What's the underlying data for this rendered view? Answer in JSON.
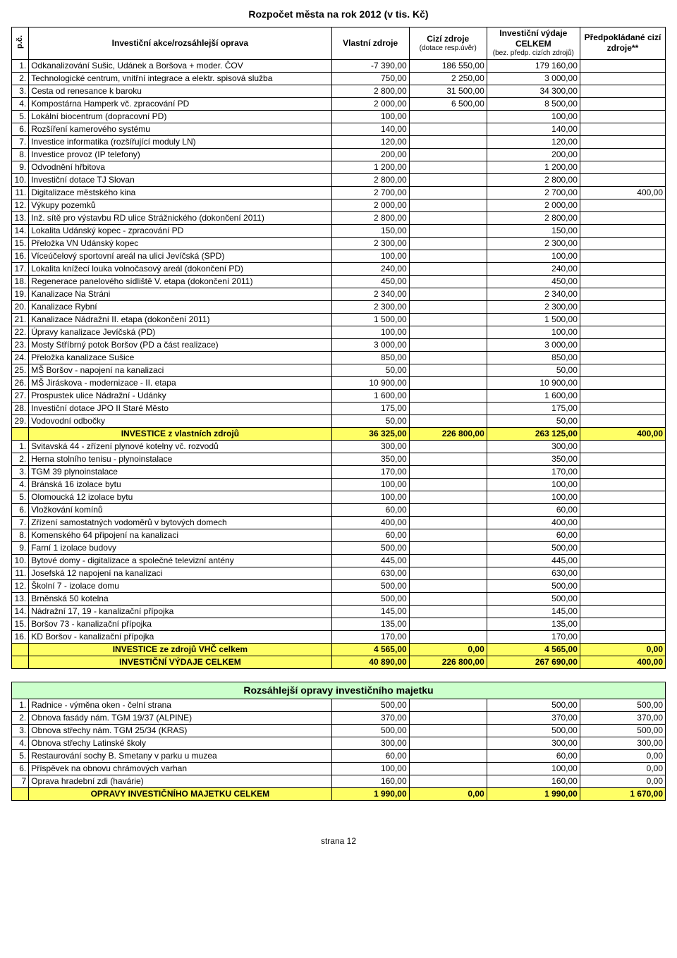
{
  "title": "Rozpočet města na rok 2012 (v tis. Kč)",
  "footer": "strana 12",
  "columns": {
    "pc": "p.č.",
    "name": "Investiční akce/rozsáhlejší oprava",
    "vlastni": "Vlastní zdroje",
    "cizi": "Cizí zdroje",
    "cizi_sub": "(dotace resp.úvěr)",
    "celkem": "Investiční výdaje CELKEM",
    "celkem_sub": "(bez. předp. cizích zdrojů)",
    "predp": "Předpokládané cizí zdroje**"
  },
  "rows1": [
    {
      "pc": "1.",
      "name": "Odkanalizování Sušic, Udánek a Boršova + moder. ČOV",
      "v": "-7 390,00",
      "c": "186 550,00",
      "t": "179 160,00",
      "p": ""
    },
    {
      "pc": "2.",
      "name": "Technologické centrum, vnitřní integrace a elektr. spisová služba",
      "v": "750,00",
      "c": "2 250,00",
      "t": "3 000,00",
      "p": ""
    },
    {
      "pc": "3.",
      "name": "Cesta od renesance k baroku",
      "v": "2 800,00",
      "c": "31 500,00",
      "t": "34 300,00",
      "p": ""
    },
    {
      "pc": "4.",
      "name": "Kompostárna Hamperk vč. zpracování PD",
      "v": "2 000,00",
      "c": "6 500,00",
      "t": "8 500,00",
      "p": ""
    },
    {
      "pc": "5.",
      "name": "Lokální biocentrum (dopracovní PD)",
      "v": "100,00",
      "c": "",
      "t": "100,00",
      "p": ""
    },
    {
      "pc": "6.",
      "name": "Rozšíření kamerového systému",
      "v": "140,00",
      "c": "",
      "t": "140,00",
      "p": ""
    },
    {
      "pc": "7.",
      "name": "Investice informatika (rozšířující moduly LN)",
      "v": "120,00",
      "c": "",
      "t": "120,00",
      "p": ""
    },
    {
      "pc": "8.",
      "name": "Investice provoz (IP telefony)",
      "v": "200,00",
      "c": "",
      "t": "200,00",
      "p": ""
    },
    {
      "pc": "9.",
      "name": "Odvodnění hřbitova",
      "v": "1 200,00",
      "c": "",
      "t": "1 200,00",
      "p": ""
    },
    {
      "pc": "10.",
      "name": "Investiční dotace TJ Slovan",
      "v": "2 800,00",
      "c": "",
      "t": "2 800,00",
      "p": ""
    },
    {
      "pc": "11.",
      "name": "Digitalizace městského kina",
      "v": "2 700,00",
      "c": "",
      "t": "2 700,00",
      "p": "400,00"
    },
    {
      "pc": "12.",
      "name": "Výkupy pozemků",
      "v": "2 000,00",
      "c": "",
      "t": "2 000,00",
      "p": ""
    },
    {
      "pc": "13.",
      "name": "Inž. sítě pro výstavbu RD ulice Strážnického (dokončení 2011)",
      "v": "2 800,00",
      "c": "",
      "t": "2 800,00",
      "p": ""
    },
    {
      "pc": "14.",
      "name": "Lokalita Udánský kopec - zpracování PD",
      "v": "150,00",
      "c": "",
      "t": "150,00",
      "p": ""
    },
    {
      "pc": "15.",
      "name": "Přeložka VN Udánský kopec",
      "v": "2 300,00",
      "c": "",
      "t": "2 300,00",
      "p": ""
    },
    {
      "pc": "16.",
      "name": "Víceúčelový sportovní areál na ulici Jevíčská (SPD)",
      "v": "100,00",
      "c": "",
      "t": "100,00",
      "p": ""
    },
    {
      "pc": "17.",
      "name": "Lokalita knížecí louka volnočasový areál (dokončení PD)",
      "v": "240,00",
      "c": "",
      "t": "240,00",
      "p": ""
    },
    {
      "pc": "18.",
      "name": "Regenerace panelového sídliště V. etapa (dokončení 2011)",
      "v": "450,00",
      "c": "",
      "t": "450,00",
      "p": ""
    },
    {
      "pc": "19.",
      "name": "Kanalizace Na Stráni",
      "v": "2 340,00",
      "c": "",
      "t": "2 340,00",
      "p": ""
    },
    {
      "pc": "20.",
      "name": "Kanalizace Rybní",
      "v": "2 300,00",
      "c": "",
      "t": "2 300,00",
      "p": ""
    },
    {
      "pc": "21.",
      "name": "Kanalizace Nádražní II. etapa (dokončení 2011)",
      "v": "1 500,00",
      "c": "",
      "t": "1 500,00",
      "p": ""
    },
    {
      "pc": "22.",
      "name": "Úpravy kanalizace Jevíčská (PD)",
      "v": "100,00",
      "c": "",
      "t": "100,00",
      "p": ""
    },
    {
      "pc": "23.",
      "name": "Mosty Stříbrný potok Boršov (PD a část realizace)",
      "v": "3 000,00",
      "c": "",
      "t": "3 000,00",
      "p": ""
    },
    {
      "pc": "24.",
      "name": "Přeložka kanalizace Sušice",
      "v": "850,00",
      "c": "",
      "t": "850,00",
      "p": ""
    },
    {
      "pc": "25.",
      "name": "MŠ Boršov - napojení na kanalizaci",
      "v": "50,00",
      "c": "",
      "t": "50,00",
      "p": ""
    },
    {
      "pc": "26.",
      "name": "MŠ Jiráskova - modernizace - II. etapa",
      "v": "10 900,00",
      "c": "",
      "t": "10 900,00",
      "p": ""
    },
    {
      "pc": "27.",
      "name": "Prospustek ulice Nádražní - Udánky",
      "v": "1 600,00",
      "c": "",
      "t": "1 600,00",
      "p": ""
    },
    {
      "pc": "28.",
      "name": "Investiční dotace JPO II Staré Město",
      "v": "175,00",
      "c": "",
      "t": "175,00",
      "p": ""
    },
    {
      "pc": "29.",
      "name": "Vodovodní odbočky",
      "v": "50,00",
      "c": "",
      "t": "50,00",
      "p": ""
    }
  ],
  "sum1": {
    "name": "INVESTICE z vlastních zdrojů",
    "v": "36 325,00",
    "c": "226 800,00",
    "t": "263 125,00",
    "p": "400,00"
  },
  "rows2": [
    {
      "pc": "1.",
      "name": "Svitavská 44 - zřízení plynové kotelny vč. rozvodů",
      "v": "300,00",
      "c": "",
      "t": "300,00",
      "p": ""
    },
    {
      "pc": "2.",
      "name": "Herna stolního tenisu - plynoinstalace",
      "v": "350,00",
      "c": "",
      "t": "350,00",
      "p": ""
    },
    {
      "pc": "3.",
      "name": "TGM 39 plynoinstalace",
      "v": "170,00",
      "c": "",
      "t": "170,00",
      "p": ""
    },
    {
      "pc": "4.",
      "name": "Bránská 16 izolace bytu",
      "v": "100,00",
      "c": "",
      "t": "100,00",
      "p": ""
    },
    {
      "pc": "5.",
      "name": "Olomoucká 12 izolace bytu",
      "v": "100,00",
      "c": "",
      "t": "100,00",
      "p": ""
    },
    {
      "pc": "6.",
      "name": "Vložkování komínů",
      "v": "60,00",
      "c": "",
      "t": "60,00",
      "p": ""
    },
    {
      "pc": "7.",
      "name": "Zřízení samostatných vodoměrů v bytových domech",
      "v": "400,00",
      "c": "",
      "t": "400,00",
      "p": ""
    },
    {
      "pc": "8.",
      "name": "Komenského 64 připojení na kanalizaci",
      "v": "60,00",
      "c": "",
      "t": "60,00",
      "p": ""
    },
    {
      "pc": "9.",
      "name": "Farní 1 izolace budovy",
      "v": "500,00",
      "c": "",
      "t": "500,00",
      "p": ""
    },
    {
      "pc": "10.",
      "name": "Bytové domy - digitalizace a společné televizní antény",
      "v": "445,00",
      "c": "",
      "t": "445,00",
      "p": ""
    },
    {
      "pc": "11.",
      "name": "Josefská 12 napojení na kanalizaci",
      "v": "630,00",
      "c": "",
      "t": "630,00",
      "p": ""
    },
    {
      "pc": "12.",
      "name": "Školní 7 - izolace domu",
      "v": "500,00",
      "c": "",
      "t": "500,00",
      "p": ""
    },
    {
      "pc": "13.",
      "name": "Brněnská 50 kotelna",
      "v": "500,00",
      "c": "",
      "t": "500,00",
      "p": ""
    },
    {
      "pc": "14.",
      "name": "Nádražní 17, 19 - kanalizační přípojka",
      "v": "145,00",
      "c": "",
      "t": "145,00",
      "p": ""
    },
    {
      "pc": "15.",
      "name": "Boršov 73 - kanalizační přípojka",
      "v": "135,00",
      "c": "",
      "t": "135,00",
      "p": ""
    },
    {
      "pc": "16.",
      "name": "KD Boršov - kanalizační přípojka",
      "v": "170,00",
      "c": "",
      "t": "170,00",
      "p": ""
    }
  ],
  "sum2": {
    "name": "INVESTICE ze zdrojů VHČ celkem",
    "v": "4 565,00",
    "c": "0,00",
    "t": "4 565,00",
    "p": "0,00"
  },
  "sum3": {
    "name": "INVESTIČNÍ VÝDAJE CELKEM",
    "v": "40 890,00",
    "c": "226 800,00",
    "t": "267 690,00",
    "p": "400,00"
  },
  "section2_title": "Rozsáhlejší opravy investičního majetku",
  "rows3": [
    {
      "pc": "1.",
      "name": "Radnice - výměna oken - čelní strana",
      "v": "500,00",
      "c": "",
      "t": "500,00",
      "p": "500,00"
    },
    {
      "pc": "2.",
      "name": "Obnova fasády nám. TGM 19/37 (ALPINE)",
      "v": "370,00",
      "c": "",
      "t": "370,00",
      "p": "370,00"
    },
    {
      "pc": "3.",
      "name": "Obnova střechy nám. TGM 25/34 (KRAS)",
      "v": "500,00",
      "c": "",
      "t": "500,00",
      "p": "500,00"
    },
    {
      "pc": "4.",
      "name": "Obnova střechy Latinské školy",
      "v": "300,00",
      "c": "",
      "t": "300,00",
      "p": "300,00"
    },
    {
      "pc": "5.",
      "name": "Restaurování sochy B. Smetany v parku u muzea",
      "v": "60,00",
      "c": "",
      "t": "60,00",
      "p": "0,00"
    },
    {
      "pc": "6.",
      "name": "Příspěvek na obnovu chrámových varhan",
      "v": "100,00",
      "c": "",
      "t": "100,00",
      "p": "0,00"
    },
    {
      "pc": "7",
      "name": "Oprava hradební zdi (havárie)",
      "v": "160,00",
      "c": "",
      "t": "160,00",
      "p": "0,00"
    }
  ],
  "sum4": {
    "name": "OPRAVY INVESTIČNÍHO MAJETKU CELKEM",
    "v": "1 990,00",
    "c": "0,00",
    "t": "1 990,00",
    "p": "1 670,00"
  },
  "colors": {
    "yellow": "#ffff66",
    "green": "#ccffcc"
  }
}
